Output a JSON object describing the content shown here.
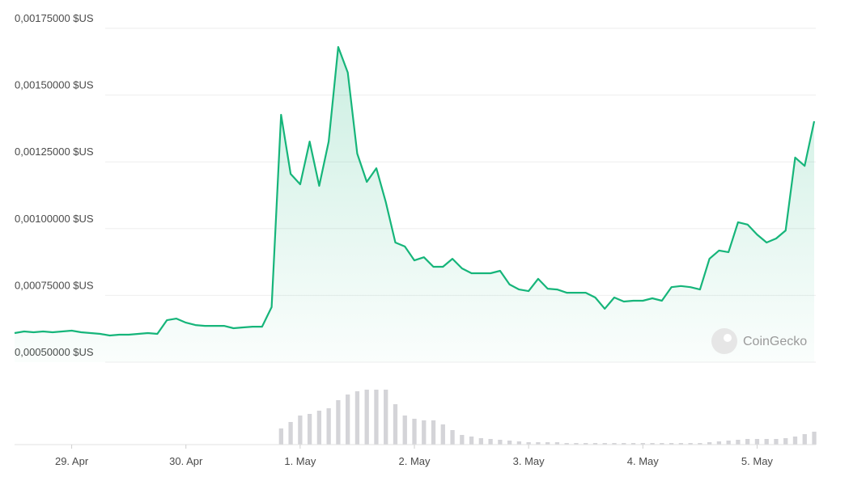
{
  "chart_data": {
    "type": "line",
    "color": "#16b57a",
    "xlim": [
      0,
      84
    ],
    "xticks": [
      {
        "value": 6,
        "label": "29. Apr"
      },
      {
        "value": 18,
        "label": "30. Apr"
      },
      {
        "value": 30,
        "label": "1. May"
      },
      {
        "value": 42,
        "label": "2. May"
      },
      {
        "value": 54,
        "label": "3. May"
      },
      {
        "value": 66,
        "label": "4. May"
      },
      {
        "value": 78,
        "label": "5. May"
      }
    ],
    "ylim": [
      0.0005,
      0.00175
    ],
    "yticks": [
      {
        "value": 0.0005,
        "label": "0,00050000 $US"
      },
      {
        "value": 0.00075,
        "label": "0,00075000 $US"
      },
      {
        "value": 0.001,
        "label": "0,00100000 $US"
      },
      {
        "value": 0.00125,
        "label": "0,00125000 $US"
      },
      {
        "value": 0.0015,
        "label": "0,00150000 $US"
      },
      {
        "value": 0.00175,
        "label": "0,00175000 $US"
      }
    ],
    "grid": true,
    "values": [
      0.000609,
      0.000615,
      0.000612,
      0.000615,
      0.000612,
      0.000615,
      0.000618,
      0.000612,
      0.000609,
      0.000606,
      0.0006,
      0.000603,
      0.000603,
      0.000606,
      0.000609,
      0.000606,
      0.000657,
      0.000663,
      0.000648,
      0.000639,
      0.000636,
      0.000636,
      0.000636,
      0.000627,
      0.00063,
      0.000633,
      0.000633,
      0.000706,
      0.001426,
      0.001205,
      0.001166,
      0.001326,
      0.00116,
      0.001326,
      0.00168,
      0.001584,
      0.001281,
      0.001175,
      0.001226,
      0.001099,
      0.000948,
      0.000933,
      0.000881,
      0.000893,
      0.000857,
      0.000857,
      0.000887,
      0.000851,
      0.000833,
      0.000833,
      0.000833,
      0.000842,
      0.000791,
      0.000772,
      0.000766,
      0.000812,
      0.000775,
      0.000772,
      0.00076,
      0.00076,
      0.00076,
      0.000742,
      0.0007,
      0.000742,
      0.000727,
      0.00073,
      0.00073,
      0.000739,
      0.00073,
      0.000781,
      0.000785,
      0.000781,
      0.000772,
      0.000887,
      0.000918,
      0.000912,
      0.001024,
      0.001015,
      0.000978,
      0.000948,
      0.000963,
      0.000993,
      0.001266,
      0.001235,
      0.001402
    ],
    "volume": [
      0,
      0,
      0,
      0,
      0,
      0,
      0,
      0,
      0,
      0,
      0,
      0,
      0,
      0,
      0,
      0,
      0,
      0,
      0,
      0,
      0,
      0,
      0,
      0,
      0,
      0,
      0,
      0,
      20,
      28,
      36,
      38,
      42,
      45,
      55,
      62,
      66,
      68,
      68,
      68,
      50,
      36,
      32,
      30,
      30,
      25,
      18,
      12,
      10,
      8,
      7,
      6,
      5,
      4,
      3,
      3,
      3,
      3,
      2,
      2,
      2,
      2,
      2,
      2,
      2,
      2,
      2,
      2,
      2,
      2,
      2,
      2,
      2,
      3,
      4,
      5,
      6,
      7,
      7,
      7,
      7,
      8,
      10,
      13,
      16
    ],
    "volume_color": "#d4d4d8",
    "y2lim": [
      0,
      80
    ],
    "watermark": "CoinGecko"
  }
}
